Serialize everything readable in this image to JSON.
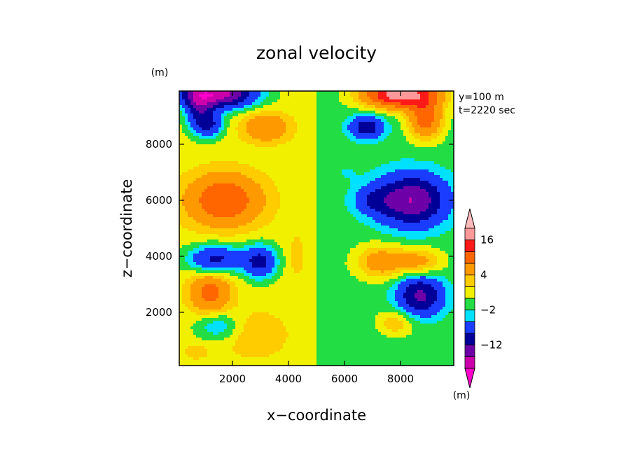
{
  "chart_data": {
    "type": "heatmap",
    "title": "zonal velocity",
    "xlabel": "x−coordinate",
    "ylabel": "z−coordinate",
    "x_unit": "(m)",
    "y_unit": "(m)",
    "info_lines": [
      "y=100 m",
      "t=2220 sec"
    ],
    "xlim": [
      100,
      9900
    ],
    "ylim": [
      100,
      9900
    ],
    "x_ticks": [
      2000,
      4000,
      6000,
      8000
    ],
    "y_ticks": [
      2000,
      4000,
      6000,
      8000
    ],
    "x_tick_labels": [
      "2000",
      "4000",
      "6000",
      "8000"
    ],
    "y_tick_labels": [
      "2000",
      "4000",
      "6000",
      "8000"
    ],
    "grid": false,
    "colorbar": {
      "unit": "(m)",
      "levels": [
        -20,
        -16,
        -12,
        -8,
        -4,
        -2,
        0,
        2,
        4,
        8,
        12,
        16,
        20
      ],
      "tick_levels": [
        -12,
        -2,
        4,
        16
      ],
      "tick_labels": [
        "−12",
        "−2",
        "4",
        "16"
      ],
      "colors": [
        "#cc00aa",
        "#6e00a8",
        "#000099",
        "#1a3cff",
        "#00e0ff",
        "#22dd44",
        "#f0f000",
        "#ffcc00",
        "#ff9900",
        "#ff6600",
        "#ff1a1a",
        "#ff9999"
      ],
      "below_color": "#ff00cc",
      "above_color": "#ffbbbb"
    },
    "field": {
      "description_units": "velocity in colorbar units, positions in metres",
      "background_left": 1,
      "background_right": -1,
      "split_x": 5000,
      "blobs": [
        {
          "x": 1500,
          "z": 9800,
          "sx": 1300,
          "sz": 500,
          "a": -19
        },
        {
          "x": 800,
          "z": 9300,
          "sx": 500,
          "sz": 800,
          "a": -9
        },
        {
          "x": 1200,
          "z": 8700,
          "sx": 500,
          "sz": 450,
          "a": -8
        },
        {
          "x": 3200,
          "z": 8600,
          "sx": 800,
          "sz": 500,
          "a": 7
        },
        {
          "x": 1700,
          "z": 6000,
          "sx": 1300,
          "sz": 900,
          "a": 11
        },
        {
          "x": 1400,
          "z": 3900,
          "sx": 1000,
          "sz": 500,
          "a": -10
        },
        {
          "x": 3000,
          "z": 3800,
          "sx": 600,
          "sz": 600,
          "a": -10
        },
        {
          "x": 1200,
          "z": 2700,
          "sx": 700,
          "sz": 700,
          "a": 9
        },
        {
          "x": 1500,
          "z": 1500,
          "sx": 800,
          "sz": 500,
          "a": -5
        },
        {
          "x": 2800,
          "z": 1200,
          "sx": 1100,
          "sz": 800,
          "a": 3
        },
        {
          "x": 700,
          "z": 600,
          "sx": 500,
          "sz": 300,
          "a": 2
        },
        {
          "x": 4300,
          "z": 4000,
          "sx": 300,
          "sz": 800,
          "a": 2
        },
        {
          "x": 8000,
          "z": 9800,
          "sx": 1300,
          "sz": 500,
          "a": 20
        },
        {
          "x": 8900,
          "z": 8900,
          "sx": 600,
          "sz": 700,
          "a": 11
        },
        {
          "x": 6800,
          "z": 8600,
          "sx": 600,
          "sz": 400,
          "a": -10
        },
        {
          "x": 8400,
          "z": 6000,
          "sx": 1200,
          "sz": 900,
          "a": -15
        },
        {
          "x": 7000,
          "z": 6000,
          "sx": 700,
          "sz": 500,
          "a": -5
        },
        {
          "x": 7300,
          "z": 3800,
          "sx": 900,
          "sz": 600,
          "a": 7
        },
        {
          "x": 8700,
          "z": 3800,
          "sx": 800,
          "sz": 500,
          "a": 6
        },
        {
          "x": 8700,
          "z": 2600,
          "sx": 800,
          "sz": 700,
          "a": -12
        },
        {
          "x": 7800,
          "z": 1600,
          "sx": 700,
          "sz": 500,
          "a": 5
        },
        {
          "x": 7200,
          "z": 900,
          "sx": 1200,
          "sz": 1000,
          "a": -1
        },
        {
          "x": 5400,
          "z": 3800,
          "sx": 300,
          "sz": 900,
          "a": -1
        },
        {
          "x": 6000,
          "z": 7000,
          "sx": 600,
          "sz": 400,
          "a": -1
        }
      ]
    }
  }
}
